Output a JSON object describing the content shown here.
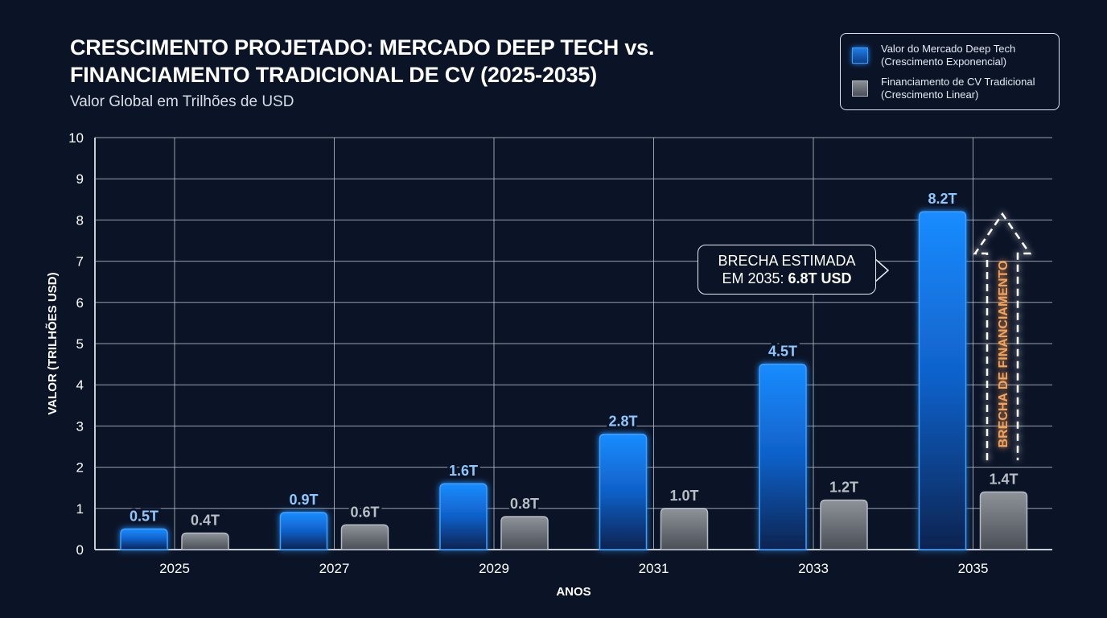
{
  "chart_data": {
    "type": "bar",
    "title": "CRESCIMENTO PROJETADO: MERCADO DEEP TECH vs. FINANCIAMENTO TRADICIONAL DE CV (2025-2035)",
    "title_lines": [
      "CRESCIMENTO PROJETADO: MERCADO DEEP TECH vs.",
      "FINANCIAMENTO TRADICIONAL DE CV (2025-2035)"
    ],
    "subtitle": "Valor Global em Trilhões de USD",
    "xlabel": "ANOS",
    "ylabel": "VALOR (TRILHÕES USD)",
    "ylim": [
      0,
      10
    ],
    "yticks": [
      "0",
      "1",
      "2",
      "3",
      "4",
      "5",
      "6",
      "7",
      "8",
      "9",
      "10"
    ],
    "grid": true,
    "legend_position": "top-right",
    "categories": [
      "2025",
      "2027",
      "2029",
      "2031",
      "2033",
      "2035"
    ],
    "series": [
      {
        "name": "Valor do Mercado Deep Tech",
        "name_sub": "(Crescimento Exponencial)",
        "color": "#1a86f5",
        "values": [
          0.5,
          0.9,
          1.6,
          2.8,
          4.5,
          8.2
        ],
        "labels": [
          "0.5T",
          "0.9T",
          "1.6T",
          "2.8T",
          "4.5T",
          "8.2T"
        ]
      },
      {
        "name": "Financiamento de CV Tradicional",
        "name_sub": "(Crescimento Linear)",
        "color": "#7d828a",
        "values": [
          0.4,
          0.6,
          0.8,
          1.0,
          1.2,
          1.4
        ],
        "labels": [
          "0.4T",
          "0.6T",
          "0.8T",
          "1.0T",
          "1.2T",
          "1.4T"
        ]
      }
    ],
    "annotations": {
      "callout_line1": "BRECHA ESTIMADA",
      "callout_line2_prefix": "EM 2035: ",
      "callout_line2_bold": "6.8T USD",
      "gap_arrow_label": "BRECHA DE FINANCIAMENTO",
      "gap_arrow_color": "#f08a3c"
    }
  }
}
